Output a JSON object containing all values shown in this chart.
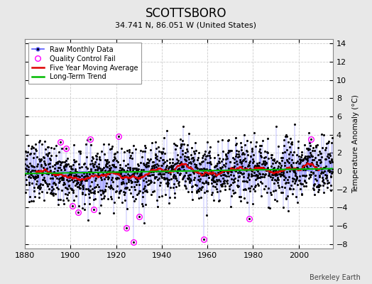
{
  "title": "SCOTTSBORO",
  "subtitle": "34.741 N, 86.051 W (United States)",
  "credit": "Berkeley Earth",
  "ylabel": "Temperature Anomaly (°C)",
  "xlim": [
    1880,
    2015
  ],
  "ylim": [
    -8.5,
    14.5
  ],
  "yticks": [
    -8,
    -6,
    -4,
    -2,
    0,
    2,
    4,
    6,
    8,
    10,
    12,
    14
  ],
  "xticks": [
    1880,
    1900,
    1920,
    1940,
    1960,
    1980,
    2000
  ],
  "bg_color": "#e8e8e8",
  "plot_bg_color": "#ffffff",
  "line_color": "#5555ff",
  "dot_color": "#000000",
  "ma_color": "#dd0000",
  "trend_color": "#00bb00",
  "qc_color": "#ff00ff",
  "seed": 37,
  "n_years": 135,
  "start_year": 1880,
  "qc_years": [
    1895.5,
    1898.2,
    1900.8,
    1903.3,
    1908.5,
    1910.2,
    1921.0,
    1924.5,
    1927.5,
    1930.0,
    1958.5,
    1978.2,
    2005.5
  ],
  "qc_vals": [
    3.2,
    2.5,
    -3.8,
    -4.5,
    3.5,
    -4.2,
    3.8,
    -6.2,
    -7.8,
    -5.0,
    -7.5,
    -5.2,
    3.5
  ]
}
